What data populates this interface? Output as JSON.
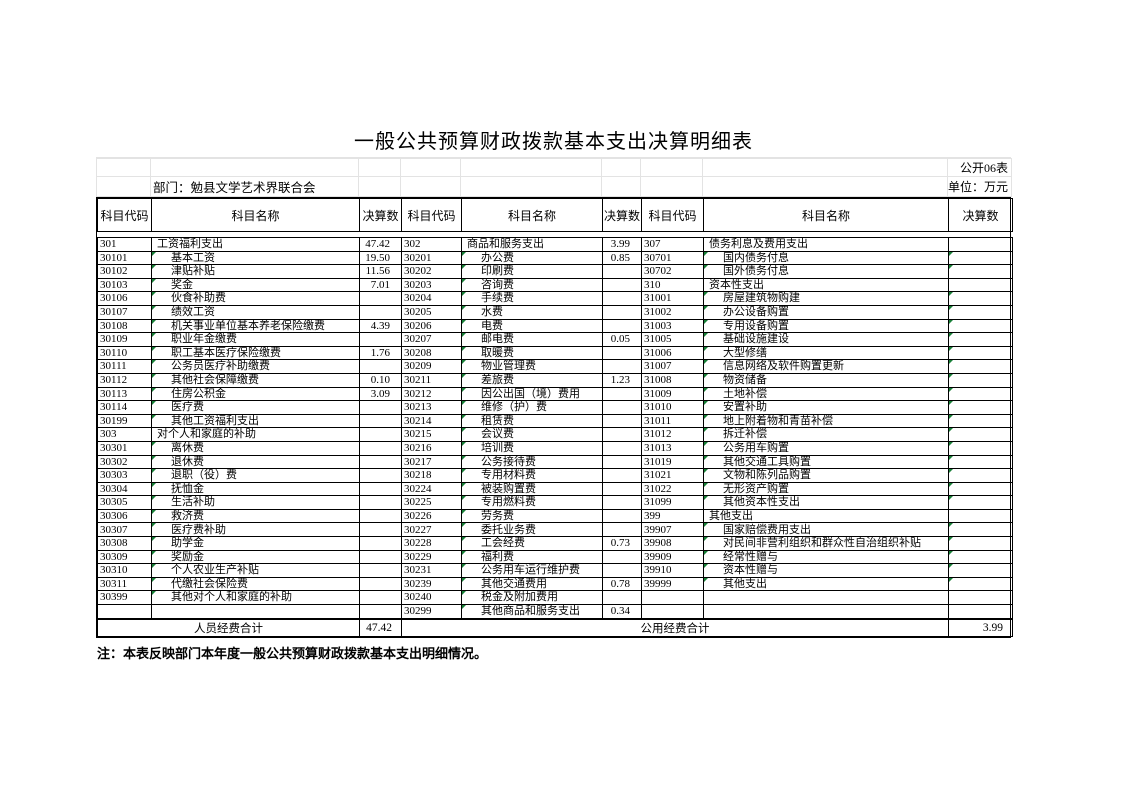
{
  "meta": {
    "title": "一般公共预算财政拨款基本支出决算明细表",
    "table_no": "公开06表",
    "department": "部门：勉县文学艺术界联合会",
    "unit": "单位：万元",
    "note": "注：本表反映部门本年度一般公共预算财政拨款基本支出明细情况。"
  },
  "header": {
    "columns": [
      "科目代码",
      "科目名称",
      "决算数",
      "科目代码",
      "科目名称",
      "决算数",
      "科目代码",
      "科目名称",
      "决算数"
    ]
  },
  "footer": {
    "personnel_label": "人员经费合计",
    "personnel_total": "47.42",
    "public_label": "公用经费合计",
    "public_total": "3.99"
  },
  "marker_color": "#188038",
  "rows": [
    [
      {
        "c": "301",
        "n": "工资福利支出",
        "v": "47.42",
        "p": 1
      },
      {
        "c": "302",
        "n": "商品和服务支出",
        "v": "3.99",
        "p": 1
      },
      {
        "c": "307",
        "n": "债务利息及费用支出",
        "v": "",
        "p": 1
      }
    ],
    [
      {
        "c": "30101",
        "n": "基本工资",
        "v": "19.50"
      },
      {
        "c": "30201",
        "n": "办公费",
        "v": "0.85"
      },
      {
        "c": "30701",
        "n": "国内债务付息",
        "v": ""
      }
    ],
    [
      {
        "c": "30102",
        "n": "津贴补贴",
        "v": "11.56"
      },
      {
        "c": "30202",
        "n": "印刷费",
        "v": ""
      },
      {
        "c": "30702",
        "n": "国外债务付息",
        "v": ""
      }
    ],
    [
      {
        "c": "30103",
        "n": "奖金",
        "v": "7.01"
      },
      {
        "c": "30203",
        "n": "咨询费",
        "v": ""
      },
      {
        "c": "310",
        "n": "资本性支出",
        "v": "",
        "p": 1
      }
    ],
    [
      {
        "c": "30106",
        "n": "伙食补助费",
        "v": ""
      },
      {
        "c": "30204",
        "n": "手续费",
        "v": ""
      },
      {
        "c": "31001",
        "n": "房屋建筑物购建",
        "v": ""
      }
    ],
    [
      {
        "c": "30107",
        "n": "绩效工资",
        "v": ""
      },
      {
        "c": "30205",
        "n": "水费",
        "v": ""
      },
      {
        "c": "31002",
        "n": "办公设备购置",
        "v": ""
      }
    ],
    [
      {
        "c": "30108",
        "n": "机关事业单位基本养老保险缴费",
        "v": "4.39"
      },
      {
        "c": "30206",
        "n": "电费",
        "v": ""
      },
      {
        "c": "31003",
        "n": "专用设备购置",
        "v": ""
      }
    ],
    [
      {
        "c": "30109",
        "n": "职业年金缴费",
        "v": ""
      },
      {
        "c": "30207",
        "n": "邮电费",
        "v": "0.05"
      },
      {
        "c": "31005",
        "n": "基础设施建设",
        "v": ""
      }
    ],
    [
      {
        "c": "30110",
        "n": "职工基本医疗保险缴费",
        "v": "1.76"
      },
      {
        "c": "30208",
        "n": "取暖费",
        "v": ""
      },
      {
        "c": "31006",
        "n": "大型修缮",
        "v": ""
      }
    ],
    [
      {
        "c": "30111",
        "n": "公务员医疗补助缴费",
        "v": ""
      },
      {
        "c": "30209",
        "n": "物业管理费",
        "v": ""
      },
      {
        "c": "31007",
        "n": "信息网络及软件购置更新",
        "v": ""
      }
    ],
    [
      {
        "c": "30112",
        "n": "其他社会保障缴费",
        "v": "0.10"
      },
      {
        "c": "30211",
        "n": "差旅费",
        "v": "1.23"
      },
      {
        "c": "31008",
        "n": "物资储备",
        "v": ""
      }
    ],
    [
      {
        "c": "30113",
        "n": "住房公积金",
        "v": "3.09"
      },
      {
        "c": "30212",
        "n": "因公出国（境）费用",
        "v": ""
      },
      {
        "c": "31009",
        "n": "土地补偿",
        "v": ""
      }
    ],
    [
      {
        "c": "30114",
        "n": "医疗费",
        "v": ""
      },
      {
        "c": "30213",
        "n": "维修（护）费",
        "v": ""
      },
      {
        "c": "31010",
        "n": "安置补助",
        "v": ""
      }
    ],
    [
      {
        "c": "30199",
        "n": "其他工资福利支出",
        "v": ""
      },
      {
        "c": "30214",
        "n": "租赁费",
        "v": ""
      },
      {
        "c": "31011",
        "n": "地上附着物和青苗补偿",
        "v": ""
      }
    ],
    [
      {
        "c": "303",
        "n": "对个人和家庭的补助",
        "v": "",
        "p": 1
      },
      {
        "c": "30215",
        "n": "会议费",
        "v": ""
      },
      {
        "c": "31012",
        "n": "拆迁补偿",
        "v": ""
      }
    ],
    [
      {
        "c": "30301",
        "n": "离休费",
        "v": ""
      },
      {
        "c": "30216",
        "n": "培训费",
        "v": ""
      },
      {
        "c": "31013",
        "n": "公务用车购置",
        "v": ""
      }
    ],
    [
      {
        "c": "30302",
        "n": "退休费",
        "v": ""
      },
      {
        "c": "30217",
        "n": "公务接待费",
        "v": ""
      },
      {
        "c": "31019",
        "n": "其他交通工具购置",
        "v": ""
      }
    ],
    [
      {
        "c": "30303",
        "n": "退职（役）费",
        "v": ""
      },
      {
        "c": "30218",
        "n": "专用材料费",
        "v": ""
      },
      {
        "c": "31021",
        "n": "文物和陈列品购置",
        "v": ""
      }
    ],
    [
      {
        "c": "30304",
        "n": "抚恤金",
        "v": ""
      },
      {
        "c": "30224",
        "n": "被装购置费",
        "v": ""
      },
      {
        "c": "31022",
        "n": "无形资产购置",
        "v": ""
      }
    ],
    [
      {
        "c": "30305",
        "n": "生活补助",
        "v": ""
      },
      {
        "c": "30225",
        "n": "专用燃料费",
        "v": ""
      },
      {
        "c": "31099",
        "n": "其他资本性支出",
        "v": ""
      }
    ],
    [
      {
        "c": "30306",
        "n": "救济费",
        "v": ""
      },
      {
        "c": "30226",
        "n": "劳务费",
        "v": ""
      },
      {
        "c": "399",
        "n": "其他支出",
        "v": "",
        "p": 1
      }
    ],
    [
      {
        "c": "30307",
        "n": "医疗费补助",
        "v": ""
      },
      {
        "c": "30227",
        "n": "委托业务费",
        "v": ""
      },
      {
        "c": "39907",
        "n": "国家赔偿费用支出",
        "v": ""
      }
    ],
    [
      {
        "c": "30308",
        "n": "助学金",
        "v": ""
      },
      {
        "c": "30228",
        "n": "工会经费",
        "v": "0.73"
      },
      {
        "c": "39908",
        "n": "对民间非营利组织和群众性自治组织补贴",
        "v": ""
      }
    ],
    [
      {
        "c": "30309",
        "n": "奖励金",
        "v": ""
      },
      {
        "c": "30229",
        "n": "福利费",
        "v": ""
      },
      {
        "c": "39909",
        "n": "经常性赠与",
        "v": ""
      }
    ],
    [
      {
        "c": "30310",
        "n": "个人农业生产补贴",
        "v": ""
      },
      {
        "c": "30231",
        "n": "公务用车运行维护费",
        "v": ""
      },
      {
        "c": "39910",
        "n": "资本性赠与",
        "v": ""
      }
    ],
    [
      {
        "c": "30311",
        "n": "代缴社会保险费",
        "v": ""
      },
      {
        "c": "30239",
        "n": "其他交通费用",
        "v": "0.78"
      },
      {
        "c": "39999",
        "n": "其他支出",
        "v": ""
      }
    ],
    [
      {
        "c": "30399",
        "n": "其他对个人和家庭的补助",
        "v": ""
      },
      {
        "c": "30240",
        "n": "税金及附加费用",
        "v": ""
      },
      {
        "c": "",
        "n": "",
        "v": ""
      }
    ],
    [
      {
        "c": "",
        "n": "",
        "v": ""
      },
      {
        "c": "30299",
        "n": "其他商品和服务支出",
        "v": "0.34"
      },
      {
        "c": "",
        "n": "",
        "v": ""
      }
    ]
  ]
}
